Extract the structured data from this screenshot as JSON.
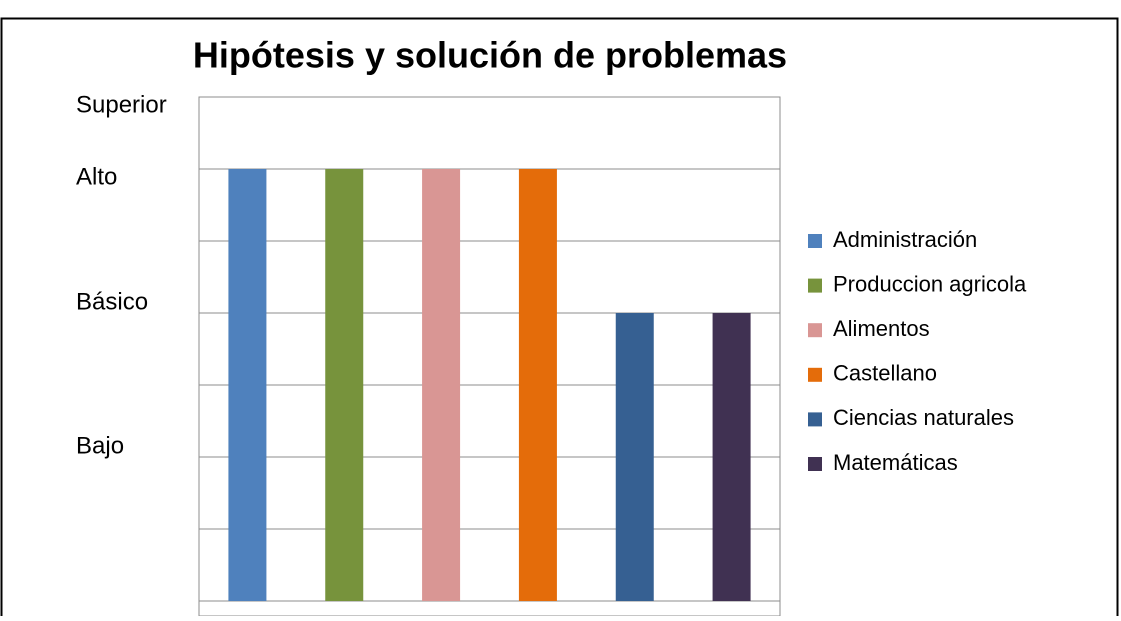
{
  "chart_data": {
    "type": "bar",
    "title": "Hipótesis y solución de problemas",
    "categories": [
      "Administración",
      "Produccion agricola",
      "Alimentos",
      "Castellano",
      "Ciencias naturales",
      "Matemáticas"
    ],
    "values": [
      6,
      6,
      6,
      6,
      4,
      4
    ],
    "colors": [
      "#4f81bd",
      "#77933c",
      "#d99694",
      "#e46c0a",
      "#366092",
      "#403152"
    ],
    "ylim": [
      0,
      7
    ],
    "yticks": [
      {
        "value": 0,
        "label": null
      },
      {
        "value": 1,
        "label": null
      },
      {
        "value": 2,
        "label": "Bajo"
      },
      {
        "value": 3,
        "label": null
      },
      {
        "value": 4,
        "label": "Básico"
      },
      {
        "value": 5,
        "label": null
      },
      {
        "value": 6,
        "label": "Alto"
      },
      {
        "value": 7,
        "label": "Superior"
      }
    ],
    "grid": true,
    "legend": "right"
  }
}
